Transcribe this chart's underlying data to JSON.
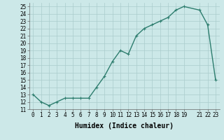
{
  "xlabel": "Humidex (Indice chaleur)",
  "x_vals": [
    0,
    1,
    2,
    3,
    4,
    5,
    6,
    7,
    8,
    9,
    10,
    11,
    12,
    13,
    14,
    15,
    16,
    17,
    18,
    19,
    21,
    22,
    23
  ],
  "y_vals": [
    13,
    12,
    11.5,
    12,
    12.5,
    12.5,
    12.5,
    12.5,
    14,
    15.5,
    17.5,
    19,
    18.5,
    21,
    22,
    22.5,
    23,
    23.5,
    24.5,
    25,
    24.5,
    22.5,
    15
  ],
  "line_color": "#2d7d6e",
  "bg_color": "#cce8e8",
  "grid_color": "#aacccc",
  "yticks": [
    11,
    12,
    13,
    14,
    15,
    16,
    17,
    18,
    19,
    20,
    21,
    22,
    23,
    24,
    25
  ],
  "xtick_positions": [
    0,
    1,
    2,
    3,
    4,
    5,
    6,
    7,
    8,
    9,
    10,
    11,
    12,
    13,
    14,
    15,
    16,
    17,
    18,
    19,
    21,
    22,
    23
  ],
  "xtick_labels": [
    "0",
    "1",
    "2",
    "3",
    "4",
    "5",
    "6",
    "7",
    "8",
    "9",
    "10",
    "11",
    "12",
    "13",
    "14",
    "15",
    "16",
    "17",
    "18",
    "19",
    "21",
    "22",
    "23"
  ],
  "xlim": [
    -0.5,
    23.5
  ],
  "ylim": [
    11,
    25.5
  ],
  "marker_size": 2.5,
  "line_width": 1.0,
  "xlabel_fontsize": 7,
  "tick_fontsize": 5.5
}
